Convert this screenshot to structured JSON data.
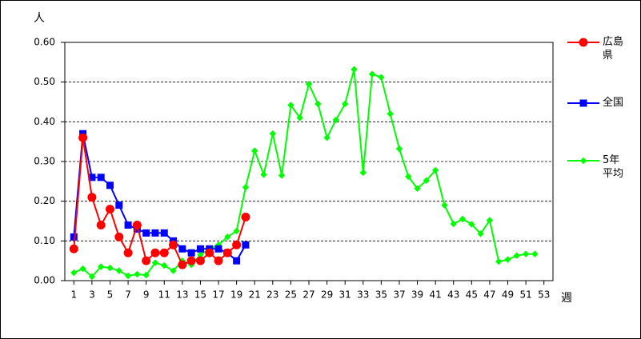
{
  "chart_data": {
    "type": "line",
    "y_label": "人",
    "x_label": "週",
    "x": [
      1,
      2,
      3,
      4,
      5,
      6,
      7,
      8,
      9,
      10,
      11,
      12,
      13,
      14,
      15,
      16,
      17,
      18,
      19,
      20,
      21,
      22,
      23,
      24,
      25,
      26,
      27,
      28,
      29,
      30,
      31,
      32,
      33,
      34,
      35,
      36,
      37,
      38,
      39,
      40,
      41,
      42,
      43,
      44,
      45,
      46,
      47,
      48,
      49,
      50,
      51,
      52
    ],
    "xlim": [
      0,
      54
    ],
    "xticks": [
      1,
      3,
      5,
      7,
      9,
      11,
      13,
      15,
      17,
      19,
      21,
      23,
      25,
      27,
      29,
      31,
      33,
      35,
      37,
      39,
      41,
      43,
      45,
      47,
      49,
      51,
      53
    ],
    "ylim": [
      0,
      0.6
    ],
    "yticks": [
      {
        "value": 0,
        "label": "0.00"
      },
      {
        "value": 0.1,
        "label": "0.10"
      },
      {
        "value": 0.2,
        "label": "0.20"
      },
      {
        "value": 0.3,
        "label": "0.30"
      },
      {
        "value": 0.4,
        "label": "0.40"
      },
      {
        "value": 0.5,
        "label": "0.50"
      },
      {
        "value": 0.6,
        "label": "0.60"
      }
    ],
    "grid": true,
    "series": [
      {
        "name": "広島県",
        "color": "#ff0000",
        "marker": "circle",
        "values": [
          0.08,
          0.36,
          0.21,
          0.14,
          0.18,
          0.11,
          0.07,
          0.14,
          0.05,
          0.07,
          0.07,
          0.09,
          0.04,
          0.05,
          0.05,
          0.07,
          0.05,
          0.07,
          0.09,
          0.16,
          null,
          null,
          null,
          null,
          null,
          null,
          null,
          null,
          null,
          null,
          null,
          null,
          null,
          null,
          null,
          null,
          null,
          null,
          null,
          null,
          null,
          null,
          null,
          null,
          null,
          null,
          null,
          null,
          null,
          null,
          null,
          null
        ]
      },
      {
        "name": "全国",
        "color": "#0000ff",
        "marker": "square",
        "values": [
          0.11,
          0.37,
          0.26,
          0.26,
          0.24,
          0.19,
          0.14,
          0.13,
          0.12,
          0.12,
          0.12,
          0.1,
          0.08,
          0.07,
          0.08,
          0.08,
          0.08,
          0.07,
          0.05,
          0.09,
          null,
          null,
          null,
          null,
          null,
          null,
          null,
          null,
          null,
          null,
          null,
          null,
          null,
          null,
          null,
          null,
          null,
          null,
          null,
          null,
          null,
          null,
          null,
          null,
          null,
          null,
          null,
          null,
          null,
          null,
          null,
          null
        ]
      },
      {
        "name": "5年平均",
        "color": "#00ff00",
        "marker": "diamond",
        "values": [
          0.02,
          0.03,
          0.01,
          0.035,
          0.032,
          0.025,
          0.012,
          0.016,
          0.014,
          0.045,
          0.038,
          0.025,
          0.05,
          0.04,
          0.065,
          0.08,
          0.09,
          0.11,
          0.125,
          0.235,
          0.327,
          0.267,
          0.37,
          0.265,
          0.442,
          0.41,
          0.495,
          0.445,
          0.36,
          0.405,
          0.445,
          0.532,
          0.272,
          0.52,
          0.512,
          0.42,
          0.332,
          0.262,
          0.232,
          0.252,
          0.278,
          0.19,
          0.143,
          0.155,
          0.142,
          0.118,
          0.152,
          0.048,
          0.053,
          0.063,
          0.067,
          0.067
        ]
      }
    ]
  }
}
